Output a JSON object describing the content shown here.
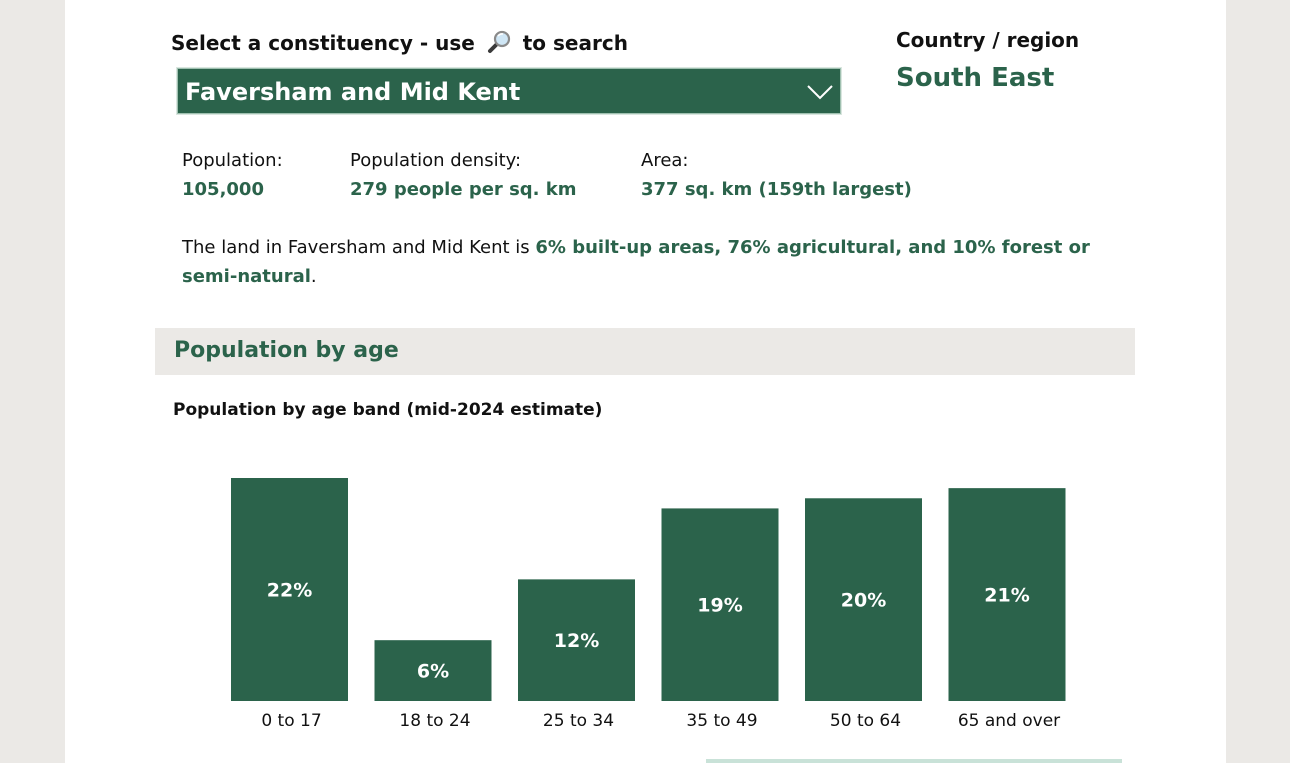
{
  "selector": {
    "label_prefix": "Select a constituency - use",
    "search_icon": "magnifier-icon",
    "label_suffix": "to search",
    "selected_value": "Faversham and Mid Kent",
    "dropdown_icon": "chevron-down-icon"
  },
  "region": {
    "label": "Country / region",
    "value": "South East"
  },
  "stats": {
    "population_label": "Population:",
    "population_value": "105,000",
    "density_label": "Population density:",
    "density_value": "279 people per sq. km",
    "area_label": "Area:",
    "area_value": "377 sq. km (159th largest)"
  },
  "land": {
    "prefix": "The land in Faversham and Mid Kent is ",
    "highlight": "6% built-up areas, 76% agricultural, and 10% forest or semi-natural",
    "suffix": "."
  },
  "section": {
    "title": "Population by age"
  },
  "chart_data": {
    "type": "bar",
    "title": "Population by age band (mid-2024 estimate)",
    "categories": [
      "0 to 17",
      "18 to 24",
      "25 to 34",
      "35 to 49",
      "50 to 64",
      "65 and over"
    ],
    "values": [
      22,
      6,
      12,
      19,
      20,
      21
    ],
    "value_labels": [
      "22%",
      "6%",
      "12%",
      "19%",
      "20%",
      "21%"
    ],
    "ylim": [
      0,
      22
    ],
    "grid": false,
    "bar_color": "#2b634b"
  },
  "colors": {
    "accent": "#2b634b",
    "background": "#ebe9e6"
  }
}
